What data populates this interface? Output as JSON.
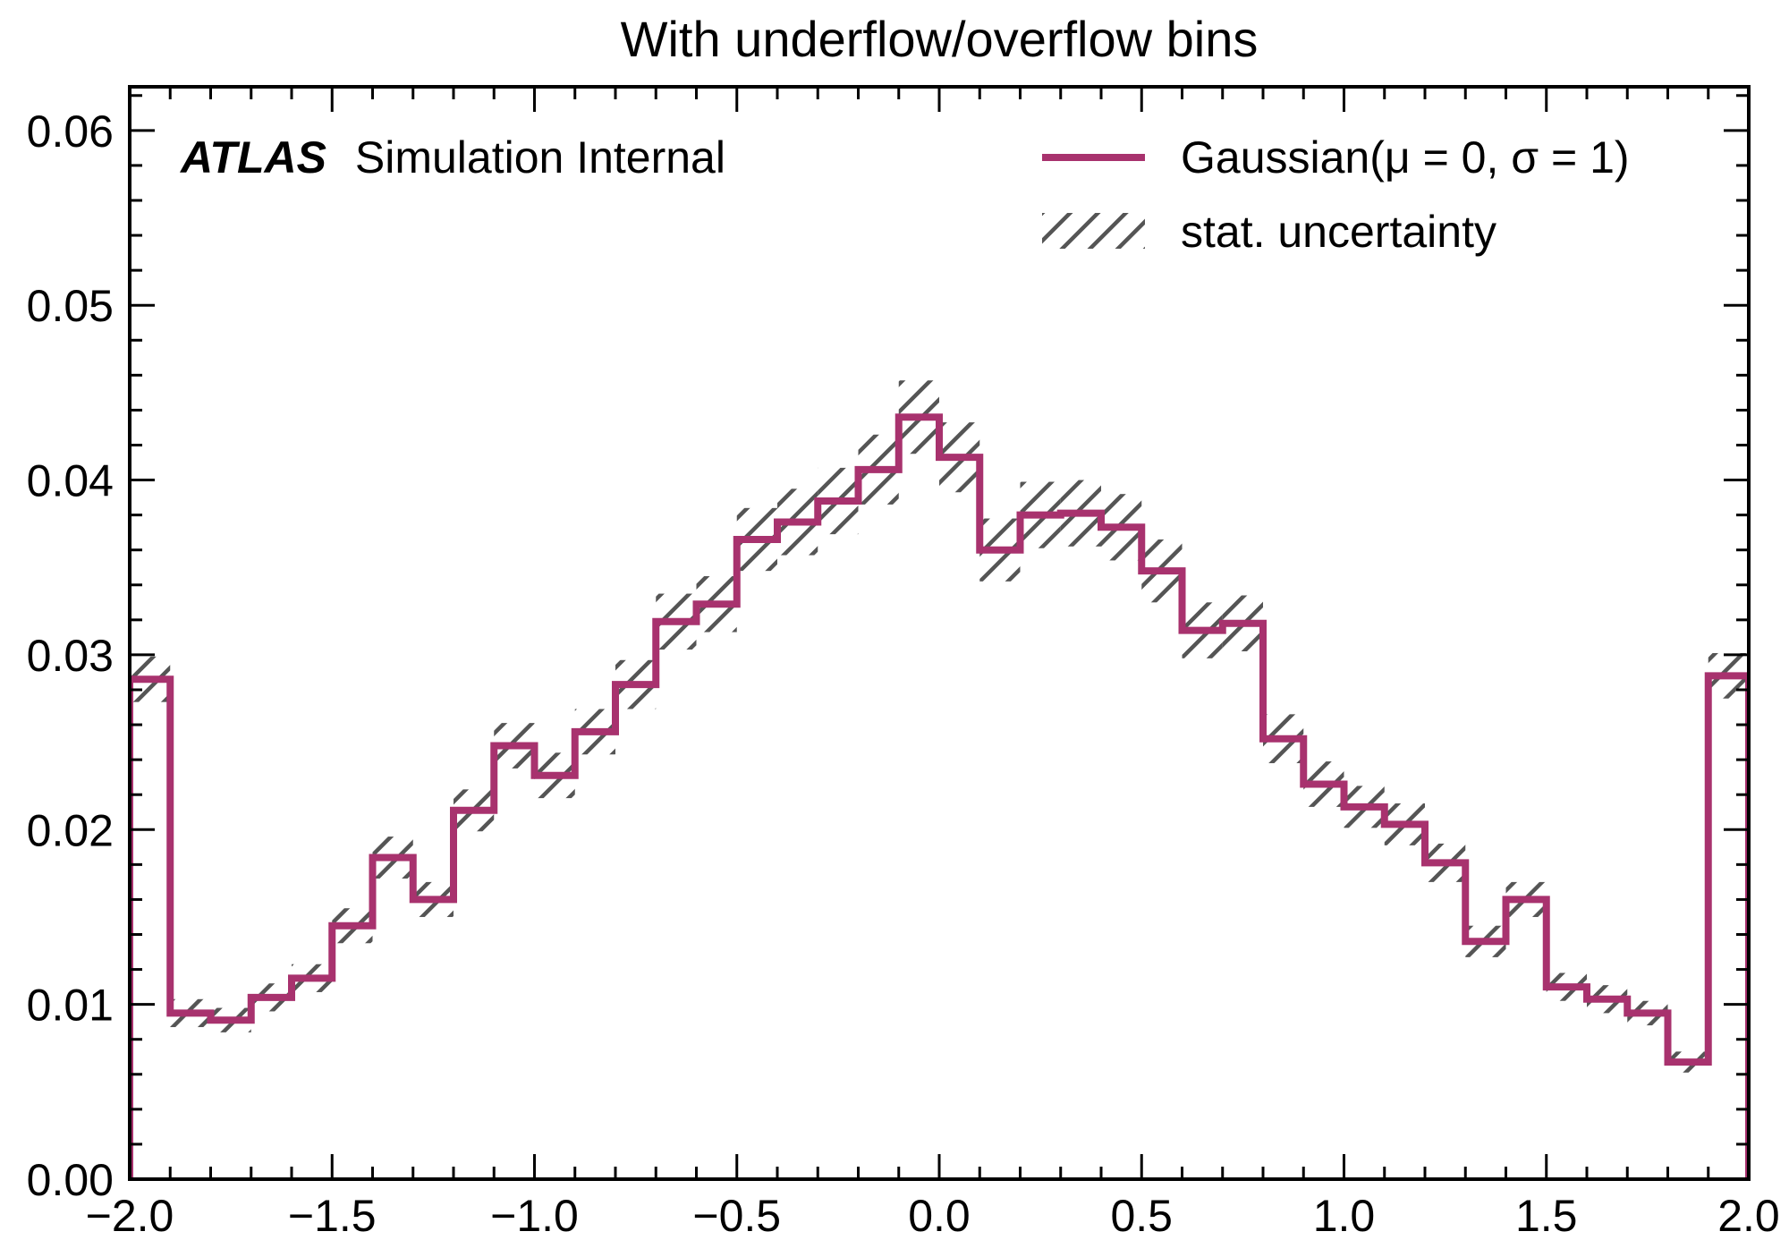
{
  "chart_data": {
    "type": "histogram",
    "title": "With underflow/overflow bins",
    "xlabel": "",
    "ylabel": "",
    "xlim": [
      -2.0,
      2.0
    ],
    "ylim": [
      0.0,
      0.0625
    ],
    "x_ticks": [
      -2.0,
      -1.5,
      -1.0,
      -0.5,
      0.0,
      0.5,
      1.0,
      1.5,
      2.0
    ],
    "x_tick_labels": [
      "−2.0",
      "−1.5",
      "−1.0",
      "−0.5",
      "0.0",
      "0.5",
      "1.0",
      "1.5",
      "2.0"
    ],
    "y_ticks": [
      0.0,
      0.01,
      0.02,
      0.03,
      0.04,
      0.05,
      0.06
    ],
    "y_tick_labels": [
      "0.00",
      "0.01",
      "0.02",
      "0.03",
      "0.04",
      "0.05",
      "0.06"
    ],
    "bin_edges": [
      -2.0,
      -1.9,
      -1.8,
      -1.7,
      -1.6,
      -1.5,
      -1.4,
      -1.3,
      -1.2,
      -1.1,
      -1.0,
      -0.9,
      -0.8,
      -0.7,
      -0.6,
      -0.5,
      -0.4,
      -0.3,
      -0.2,
      -0.1,
      0.0,
      0.1,
      0.2,
      0.3,
      0.4,
      0.5,
      0.6,
      0.7,
      0.8,
      0.9,
      1.0,
      1.1,
      1.2,
      1.3,
      1.4,
      1.5,
      1.6,
      1.7,
      1.8,
      1.9,
      2.0
    ],
    "series": [
      {
        "name": "Gaussian(μ = 0, σ = 1)",
        "color": "#a8326e",
        "values": [
          0.0286,
          0.0095,
          0.0091,
          0.0104,
          0.0115,
          0.0145,
          0.0184,
          0.016,
          0.0211,
          0.0248,
          0.0231,
          0.0256,
          0.0283,
          0.0319,
          0.0329,
          0.0366,
          0.0376,
          0.0388,
          0.0406,
          0.0436,
          0.0413,
          0.036,
          0.038,
          0.0381,
          0.0373,
          0.0348,
          0.0314,
          0.0318,
          0.0252,
          0.0226,
          0.0213,
          0.0203,
          0.0181,
          0.0136,
          0.016,
          0.011,
          0.0103,
          0.0095,
          0.0067,
          0.0288
        ],
        "uncertainty": [
          0.0013,
          0.0008,
          0.0007,
          0.0008,
          0.0008,
          0.001,
          0.0012,
          0.001,
          0.0012,
          0.0013,
          0.0013,
          0.0013,
          0.0014,
          0.0016,
          0.0016,
          0.0018,
          0.0019,
          0.0019,
          0.002,
          0.0021,
          0.002,
          0.0018,
          0.0019,
          0.0019,
          0.0019,
          0.0018,
          0.0016,
          0.0016,
          0.0014,
          0.0013,
          0.0012,
          0.0012,
          0.0011,
          0.0009,
          0.001,
          0.0008,
          0.0008,
          0.0007,
          0.0006,
          0.0013
        ]
      }
    ],
    "band_color": "#555555",
    "legend": {
      "position": "top-right",
      "entries": [
        "Gaussian(μ = 0, σ = 1)",
        "stat. uncertainty"
      ]
    },
    "annotation": {
      "bold": "ATLAS",
      "rest": "Simulation Internal",
      "position": "top-left"
    },
    "grid": false
  }
}
